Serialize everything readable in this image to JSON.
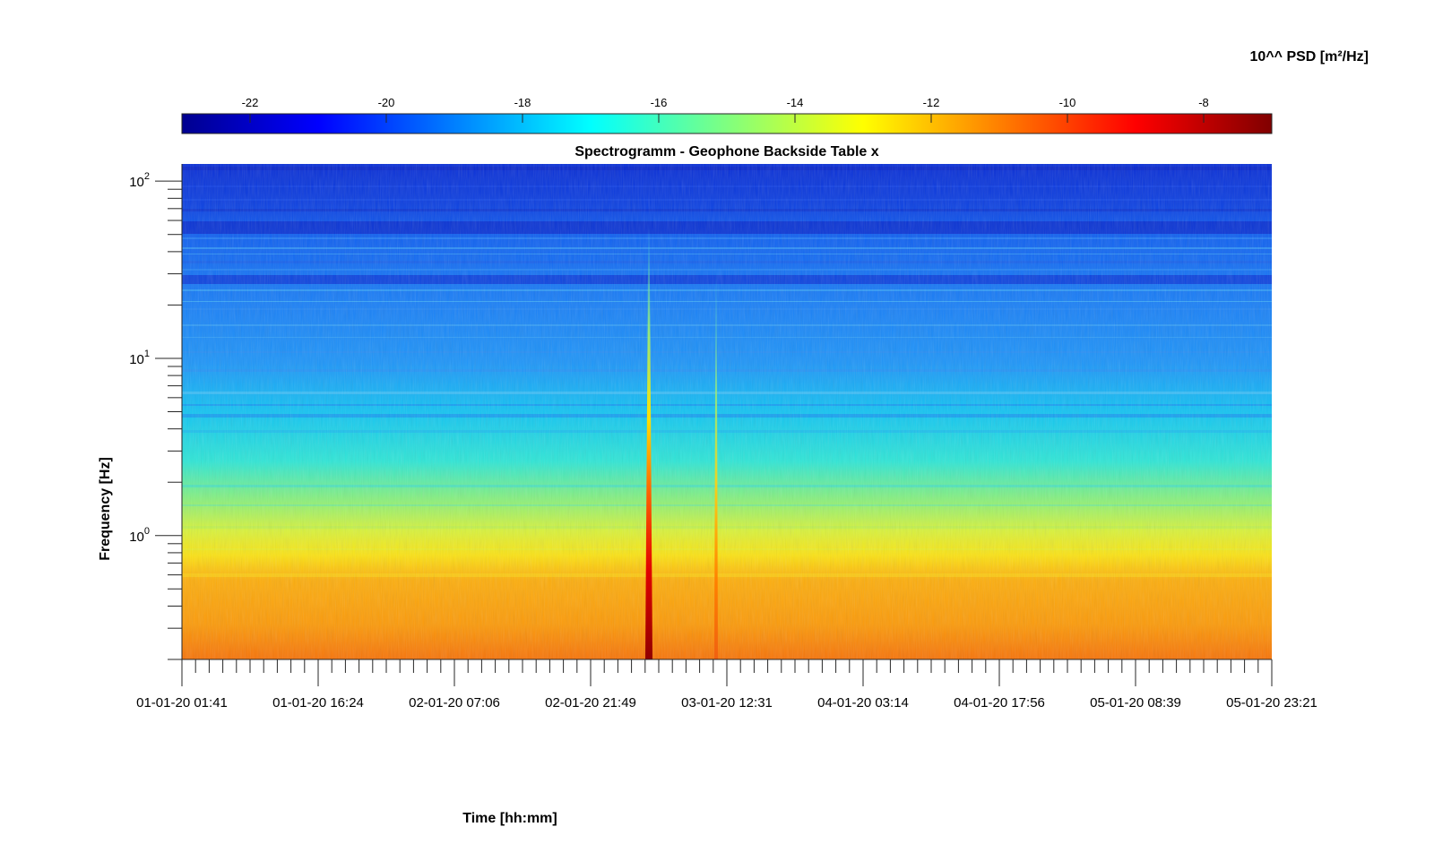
{
  "chart_data": {
    "type": "heatmap",
    "title": "Spectrogramm - Geophone Backside Table x",
    "xlabel": "Time [hh:mm]",
    "ylabel": "Frequency [Hz]",
    "x_tick_labels": [
      "01-01-20 01:41",
      "01-01-20 16:24",
      "02-01-20 07:06",
      "02-01-20 21:49",
      "03-01-20 12:31",
      "04-01-20 03:14",
      "04-01-20 17:56",
      "05-01-20 08:39",
      "05-01-20 23:21"
    ],
    "y_scale": "log",
    "y_ticks": [
      {
        "base": "10",
        "exp": "0",
        "value": 1
      },
      {
        "base": "10",
        "exp": "1",
        "value": 10
      },
      {
        "base": "10",
        "exp": "2",
        "value": 100
      }
    ],
    "ylim": [
      0.2,
      125
    ],
    "colorbar": {
      "label": "10^^ PSD [m²/Hz]",
      "location": "top",
      "colormap": "jet",
      "range": [
        -23,
        -7
      ],
      "tick_labels": [
        "-22",
        "-20",
        "-18",
        "-16",
        "-14",
        "-12",
        "-10",
        "-8"
      ],
      "tick_values": [
        -22,
        -20,
        -18,
        -16,
        -14,
        -12,
        -10,
        -8
      ]
    },
    "events": [
      {
        "time": "02-01-20 ~23:40",
        "description": "broadband transient, strongest",
        "max_psd_exp": -7
      },
      {
        "time": "03-01-20 ~09:30",
        "description": "broadband transient, weaker",
        "max_psd_exp": -10
      }
    ]
  }
}
